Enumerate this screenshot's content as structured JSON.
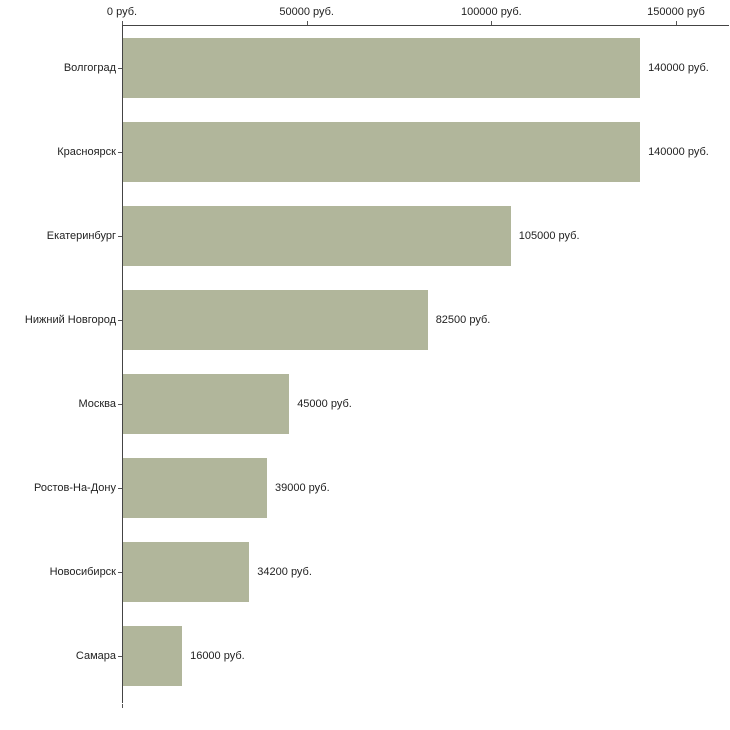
{
  "chart_data": {
    "type": "bar",
    "orientation": "horizontal",
    "title": "",
    "xlabel": "",
    "ylabel": "",
    "categories": [
      "Волгоград",
      "Красноярск",
      "Екатеринбург",
      "Нижний Новгород",
      "Москва",
      "Ростов-На-Дону",
      "Новосибирск",
      "Самара"
    ],
    "values": [
      140000,
      140000,
      105000,
      82500,
      45000,
      39000,
      34200,
      16000
    ],
    "value_labels": [
      "140000 руб.",
      "140000 руб.",
      "105000 руб.",
      "82500 руб.",
      "45000 руб.",
      "39000 руб.",
      "34200 руб.",
      "16000 руб."
    ],
    "x_ticks": [
      0,
      50000,
      100000,
      150000
    ],
    "x_tick_labels": [
      "0 руб.",
      "50000 руб.",
      "100000 руб.",
      "150000 руб"
    ],
    "xlim": [
      0,
      150000
    ],
    "grid": false,
    "legend": false,
    "axis_position": "top-left"
  },
  "colors": {
    "bar": "#b1b69b",
    "axis": "#444444",
    "tick": "#555555",
    "text": "#222222",
    "background": "#ffffff"
  }
}
